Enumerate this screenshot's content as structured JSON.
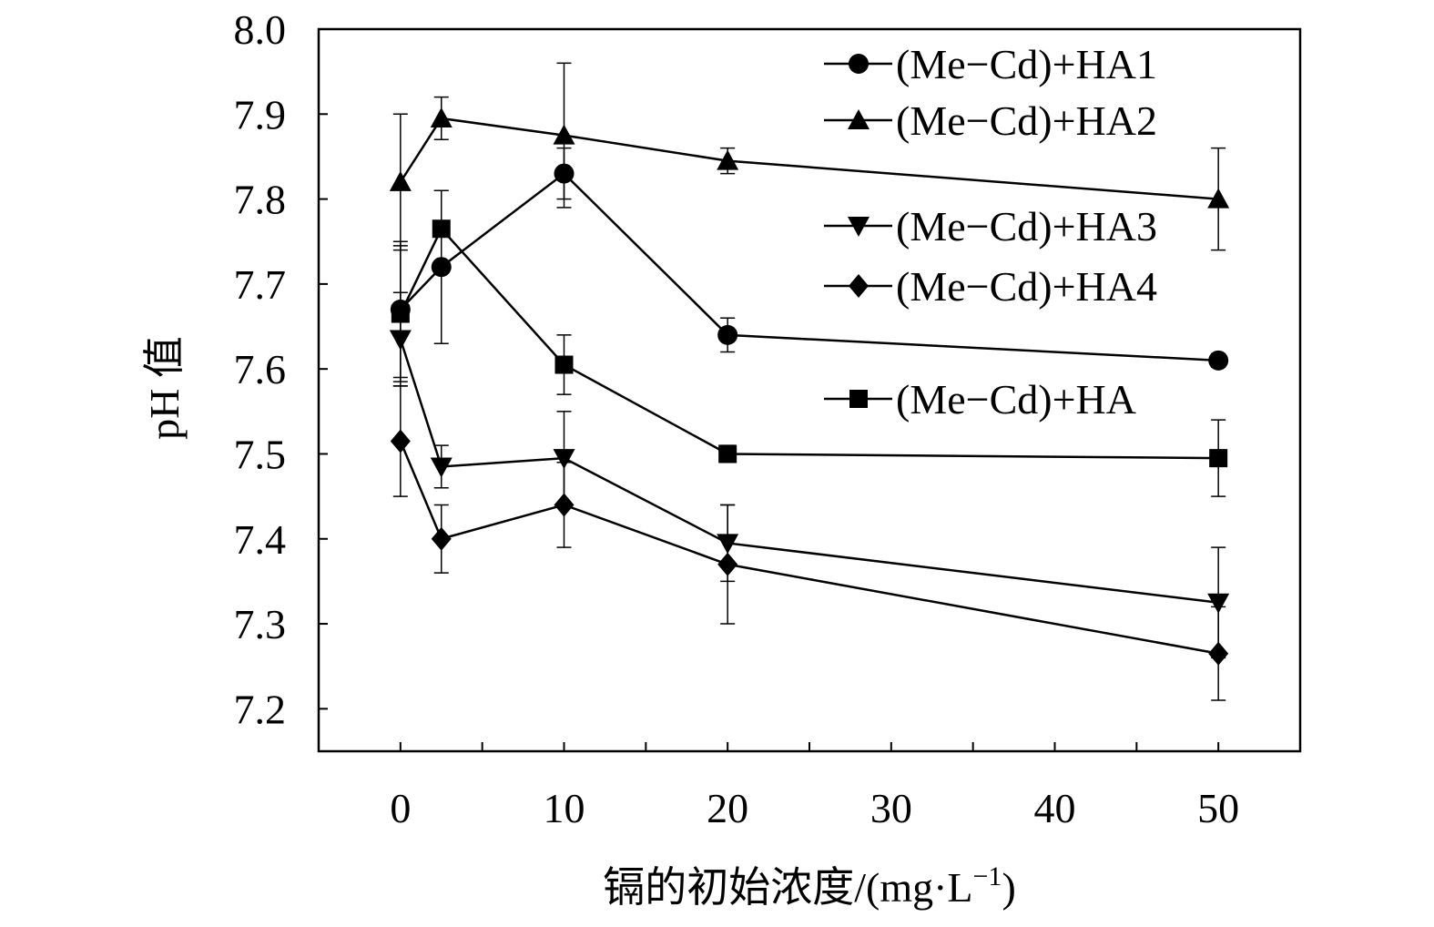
{
  "chart_data": {
    "type": "line",
    "title": "",
    "xlabel": "镉的初始浓度/(mg·L",
    "xlabel_sup": "−1",
    "xlabel_tail": ")",
    "ylabel": "pH 值",
    "xlim": [
      -5,
      55
    ],
    "ylim": [
      7.15,
      8.0
    ],
    "x_ticks": [
      0,
      10,
      20,
      30,
      40,
      50
    ],
    "y_ticks": [
      7.2,
      7.3,
      7.4,
      7.5,
      7.6,
      7.7,
      7.8,
      7.9,
      8.0
    ],
    "y_tick_labels": [
      "7.2",
      "7.3",
      "7.4",
      "7.5",
      "7.6",
      "7.7",
      "7.8",
      "7.9",
      "8.0"
    ],
    "x_tick_labels": [
      "0",
      "10",
      "20",
      "30",
      "40",
      "50"
    ],
    "grid": false,
    "legend_position": "top-right",
    "x": [
      0,
      2.5,
      10,
      20,
      50
    ],
    "series": [
      {
        "name": "(Me−Cd)+HA1",
        "marker": "circle",
        "values": [
          7.67,
          7.72,
          7.83,
          7.64,
          7.61
        ],
        "errors": [
          0.08,
          0.09,
          0.03,
          0.02,
          0.008
        ]
      },
      {
        "name": "(Me−Cd)+HA2",
        "marker": "triangle-up",
        "values": [
          7.82,
          7.895,
          7.875,
          7.845,
          7.8
        ],
        "errors": [
          0.08,
          0.025,
          0.085,
          0.015,
          0.06
        ]
      },
      {
        "name": "(Me−Cd)+HA3",
        "marker": "triangle-down",
        "values": [
          7.635,
          7.485,
          7.495,
          7.395,
          7.325
        ],
        "errors": [
          0.055,
          0.025,
          0.055,
          0.045,
          0.065
        ]
      },
      {
        "name": "(Me−Cd)+HA4",
        "marker": "diamond",
        "values": [
          7.515,
          7.4,
          7.44,
          7.37,
          7.265
        ],
        "errors": [
          0.065,
          0.04,
          0.05,
          0.07,
          0.055
        ]
      },
      {
        "name": "(Me−Cd)+HA",
        "marker": "square",
        "values": [
          7.665,
          7.765,
          7.605,
          7.5,
          7.495
        ],
        "errors": [
          0.08,
          0.045,
          0.035,
          0.01,
          0.045
        ]
      }
    ]
  }
}
